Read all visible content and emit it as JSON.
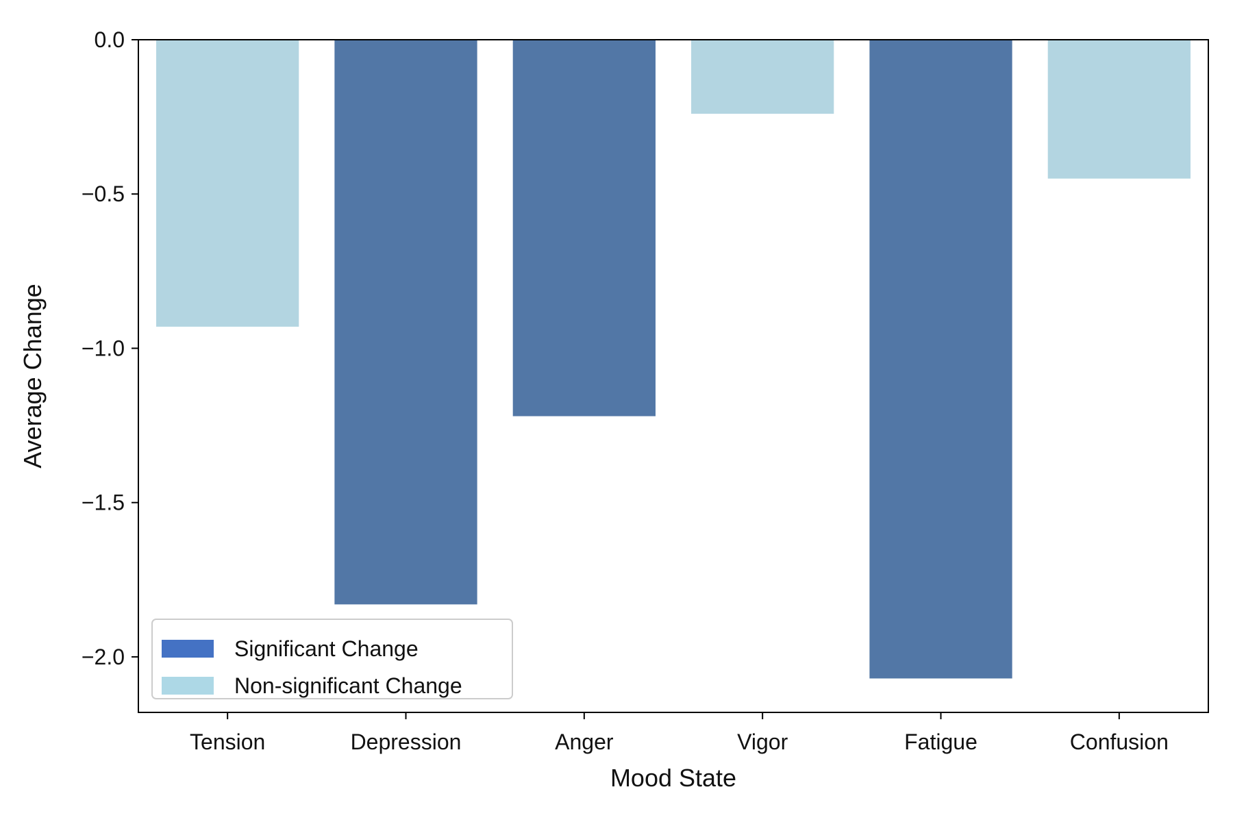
{
  "chart_data": {
    "type": "bar",
    "title": "",
    "xlabel": "Mood State",
    "ylabel": "Average Change",
    "categories": [
      "Tension",
      "Depression",
      "Anger",
      "Vigor",
      "Fatigue",
      "Confusion"
    ],
    "values": [
      -0.93,
      -1.83,
      -1.22,
      -0.24,
      -2.07,
      -0.45
    ],
    "significant": [
      false,
      true,
      true,
      false,
      true,
      false
    ],
    "ylim": [
      -2.18,
      0.0
    ],
    "yticks": [
      0.0,
      -0.5,
      -1.0,
      -1.5,
      -2.0
    ],
    "ytick_labels": [
      "0.0",
      "−0.5",
      "−1.0",
      "−1.5",
      "−2.0"
    ],
    "grid": false,
    "legend_position": "lower-left",
    "legend": [
      {
        "key": "significant",
        "label": "Significant Change",
        "color": "#4472C4"
      },
      {
        "key": "nonsignificant",
        "label": "Non-significant Change",
        "color": "#ADD8E6"
      }
    ],
    "colors": {
      "significant_bar": "#5277A6",
      "nonsignificant_bar": "#B3D5E1"
    }
  }
}
